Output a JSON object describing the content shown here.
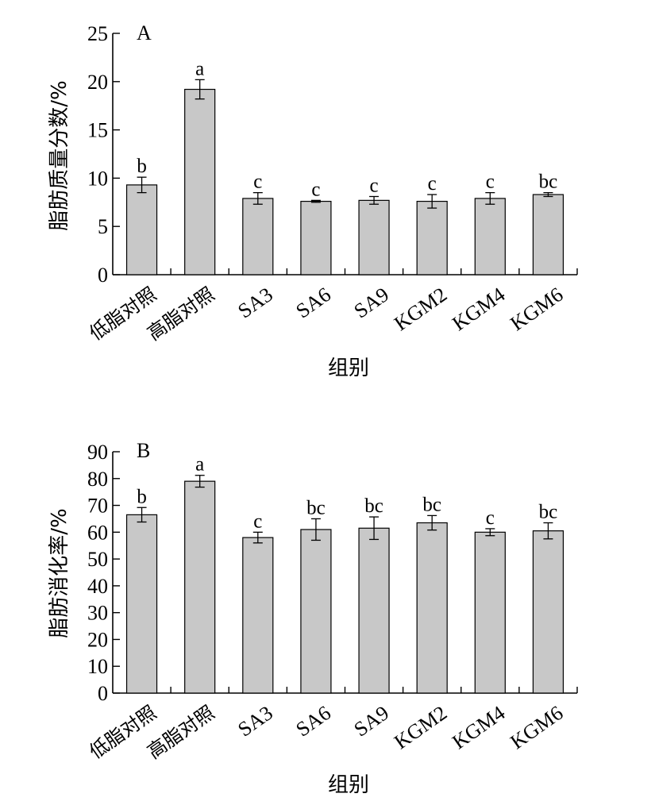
{
  "chart_data": [
    {
      "type": "bar",
      "panel_label": "A",
      "categories": [
        "低脂对照",
        "高脂对照",
        "SA3",
        "SA6",
        "SA9",
        "KGM2",
        "KGM4",
        "KGM6"
      ],
      "values": [
        9.3,
        19.2,
        7.9,
        7.6,
        7.7,
        7.6,
        7.9,
        8.3
      ],
      "errors": [
        0.8,
        1.0,
        0.6,
        0.1,
        0.4,
        0.7,
        0.6,
        0.2
      ],
      "significance": [
        "b",
        "a",
        "c",
        "c",
        "c",
        "c",
        "c",
        "bc"
      ],
      "xlabel": "组别",
      "ylabel": "脂肪质量分数/%",
      "ylim": [
        0,
        25
      ],
      "yticks": [
        0,
        5,
        10,
        15,
        20,
        25
      ],
      "grid": false
    },
    {
      "type": "bar",
      "panel_label": "B",
      "categories": [
        "低脂对照",
        "高脂对照",
        "SA3",
        "SA6",
        "SA9",
        "KGM2",
        "KGM4",
        "KGM6"
      ],
      "values": [
        66.5,
        79,
        58,
        61,
        61.5,
        63.5,
        60,
        60.5
      ],
      "errors": [
        2.7,
        2.2,
        2.0,
        4.0,
        4.2,
        2.7,
        1.3,
        3.0
      ],
      "significance": [
        "b",
        "a",
        "c",
        "bc",
        "bc",
        "bc",
        "c",
        "bc"
      ],
      "xlabel": "组别",
      "ylabel": "脂肪消化率/%",
      "ylim": [
        0,
        90
      ],
      "yticks": [
        0,
        10,
        20,
        30,
        40,
        50,
        60,
        70,
        80,
        90
      ],
      "grid": false
    }
  ]
}
